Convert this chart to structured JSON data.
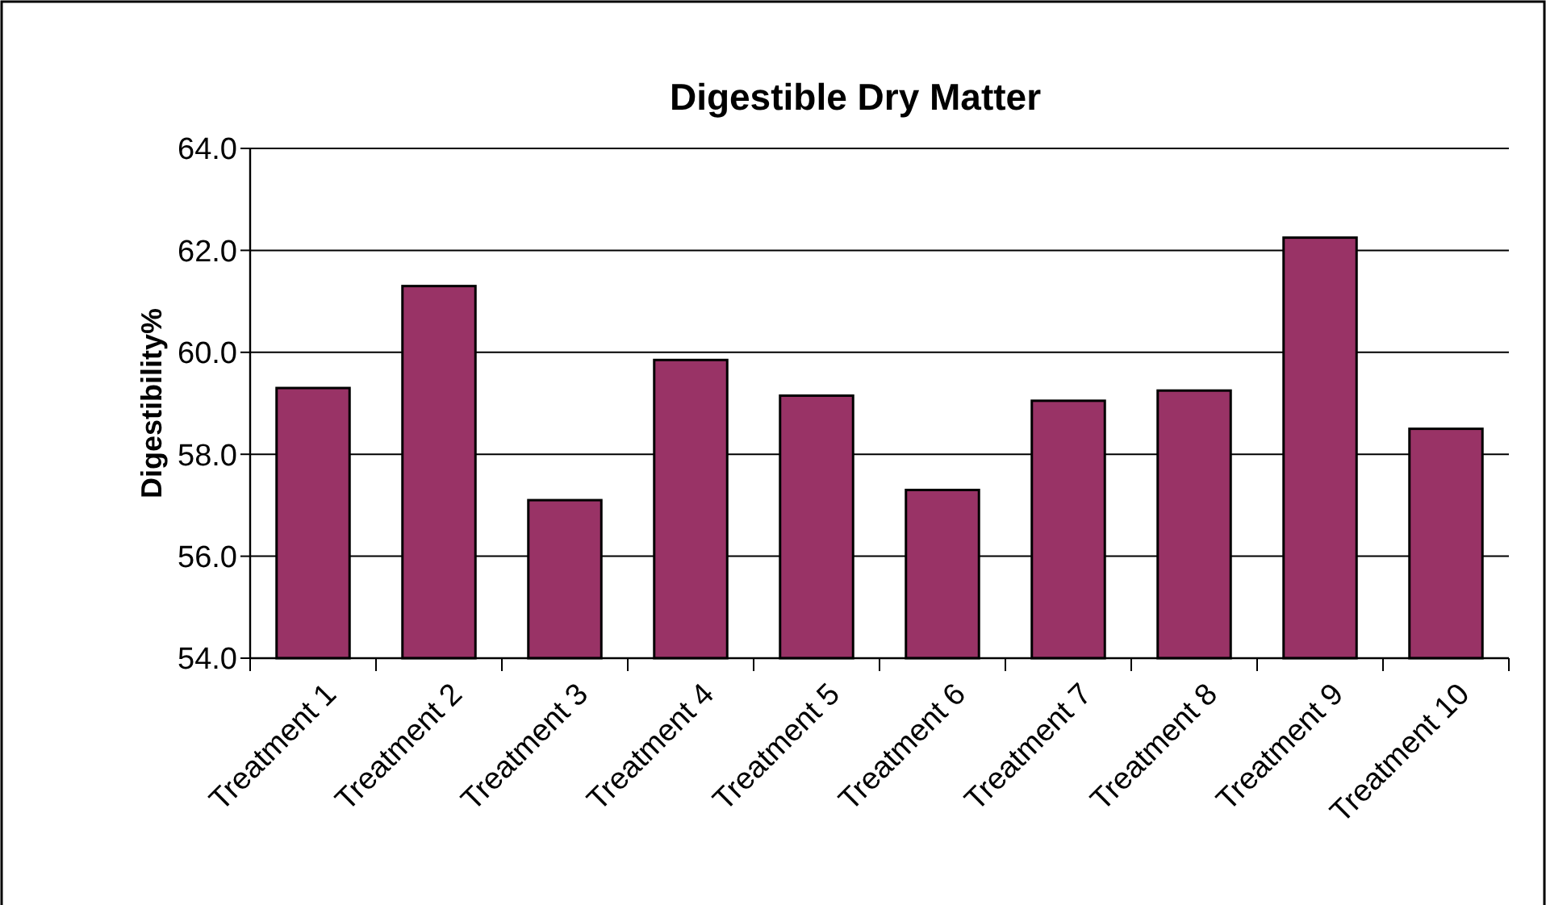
{
  "chart_data": {
    "type": "bar",
    "title": "Digestible Dry Matter",
    "ylabel": "Digestibility%",
    "categories": [
      "Treatment 1",
      "Treatment 2",
      "Treatment 3",
      "Treatment 4",
      "Treatment 5",
      "Treatment 6",
      "Treatment 7",
      "Treatment 8",
      "Treatment 9",
      "Treatment 10"
    ],
    "values": [
      59.3,
      61.3,
      57.1,
      59.85,
      59.15,
      57.3,
      59.05,
      59.25,
      62.25,
      58.5
    ],
    "color": "#993366",
    "ylim": [
      54,
      64
    ],
    "yticks": [
      {
        "value": 54,
        "label": "54.0"
      },
      {
        "value": 56,
        "label": "56.0"
      },
      {
        "value": 58,
        "label": "58.0"
      },
      {
        "value": 60,
        "label": "60.0"
      },
      {
        "value": 62,
        "label": "62.0"
      },
      {
        "value": 64,
        "label": "64.0"
      }
    ],
    "grid": "y"
  }
}
